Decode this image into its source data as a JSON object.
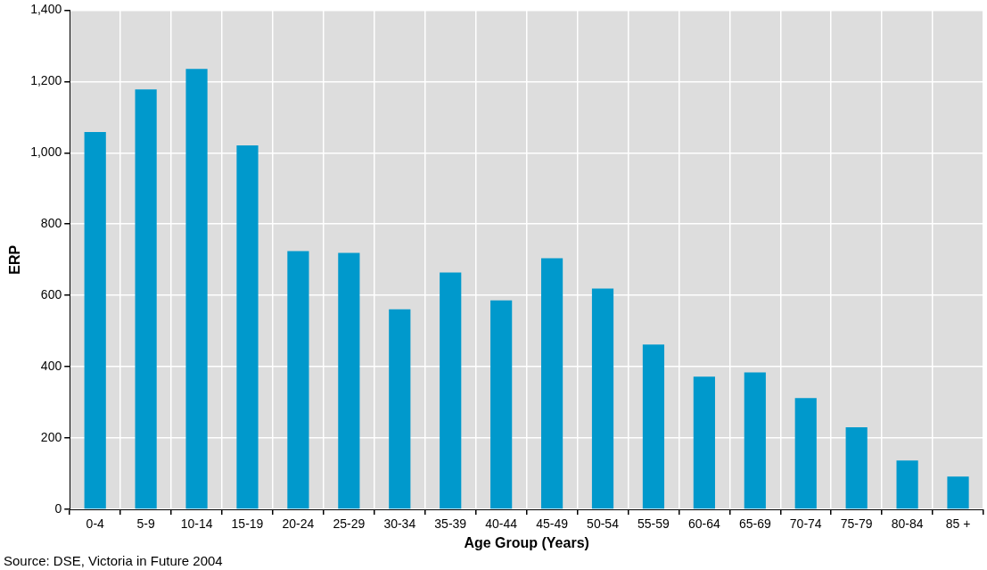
{
  "chart_data": {
    "type": "bar",
    "xlabel": "Age Group (Years)",
    "ylabel": "ERP",
    "categories": [
      "0-4",
      "5-9",
      "10-14",
      "15-19",
      "20-24",
      "25-29",
      "30-34",
      "35-39",
      "40-44",
      "45-49",
      "50-54",
      "55-59",
      "60-64",
      "65-69",
      "70-74",
      "75-79",
      "80-84",
      "85 +"
    ],
    "values": [
      1058,
      1178,
      1235,
      1021,
      724,
      719,
      561,
      664,
      586,
      704,
      619,
      462,
      372,
      384,
      312,
      230,
      137,
      92
    ],
    "color": "#0099cc",
    "ylim": [
      0,
      1400
    ],
    "yticks": [
      {
        "value": 0,
        "label": "0"
      },
      {
        "value": 200,
        "label": "200"
      },
      {
        "value": 400,
        "label": "400"
      },
      {
        "value": 600,
        "label": "600"
      },
      {
        "value": 800,
        "label": "800"
      },
      {
        "value": 1000,
        "label": "1,000"
      },
      {
        "value": 1200,
        "label": "1,200"
      },
      {
        "value": 1400,
        "label": "1,400"
      }
    ],
    "grid": true,
    "legend": false,
    "annotations": [
      "Source: DSE, Victoria in Future 2004"
    ]
  }
}
